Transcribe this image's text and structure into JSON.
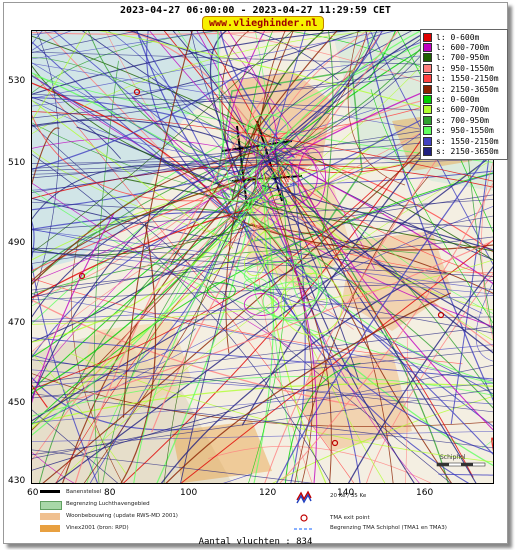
{
  "header": {
    "title": "2023-04-27 06:00:00 - 2023-04-27 11:29:59 CET",
    "brand": "www.vlieghinder.nl"
  },
  "map": {
    "x_ticks": [
      "60",
      "80",
      "100",
      "120",
      "140",
      "160"
    ],
    "y_ticks": [
      "530",
      "510",
      "490",
      "470",
      "450",
      "430"
    ],
    "corner_label": "Schiphol"
  },
  "legend": [
    {
      "label": "l: 0-600m",
      "color": "#e00000"
    },
    {
      "label": "l: 600-700m",
      "color": "#c000c0"
    },
    {
      "label": "l: 700-950m",
      "color": "#1e6000"
    },
    {
      "label": "l: 950-1550m",
      "color": "#ff8080"
    },
    {
      "label": "l: 1550-2150m",
      "color": "#ff4040"
    },
    {
      "label": "l: 2150-3650m",
      "color": "#8b2000"
    },
    {
      "label": "s: 0-600m",
      "color": "#00d000"
    },
    {
      "label": "s: 600-700m",
      "color": "#b0ff30"
    },
    {
      "label": "s: 700-950m",
      "color": "#30a030"
    },
    {
      "label": "s: 950-1550m",
      "color": "#60ff60"
    },
    {
      "label": "s: 1550-2150m",
      "color": "#4040c0"
    },
    {
      "label": "s: 2150-3650m",
      "color": "#202080"
    }
  ],
  "map_legend": [
    {
      "label": "Banenstelsel",
      "color": "#000000"
    },
    {
      "label": "Begrenzing Luchthavengebied",
      "color": "#a8d8a8"
    },
    {
      "label": "Woonbebouwing (update RWS-MD 2001)",
      "color": "#f0c090"
    },
    {
      "label": "Vinex2001 (bron: RPD)",
      "color": "#e8a040"
    }
  ],
  "map_legend_right": [
    {
      "label": "20 Ke / 35 Ke"
    },
    {
      "label": "TMA exit point"
    },
    {
      "label": "Begrenzing TMA Schiphol  (TMA1 en TMA3)"
    }
  ],
  "footer": {
    "count_label": "Aantal vluchten : 834"
  }
}
